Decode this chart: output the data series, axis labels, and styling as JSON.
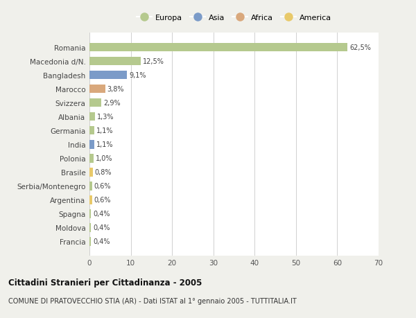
{
  "countries": [
    "Romania",
    "Macedonia d/N.",
    "Bangladesh",
    "Marocco",
    "Svizzera",
    "Albania",
    "Germania",
    "India",
    "Polonia",
    "Brasile",
    "Serbia/Montenegro",
    "Argentina",
    "Spagna",
    "Moldova",
    "Francia"
  ],
  "values": [
    62.5,
    12.5,
    9.1,
    3.8,
    2.9,
    1.3,
    1.1,
    1.1,
    1.0,
    0.8,
    0.6,
    0.6,
    0.4,
    0.4,
    0.4
  ],
  "labels": [
    "62,5%",
    "12,5%",
    "9,1%",
    "3,8%",
    "2,9%",
    "1,3%",
    "1,1%",
    "1,1%",
    "1,0%",
    "0,8%",
    "0,6%",
    "0,6%",
    "0,4%",
    "0,4%",
    "0,4%"
  ],
  "colors": [
    "#b5c98e",
    "#b5c98e",
    "#7b9bc8",
    "#d9a87c",
    "#b5c98e",
    "#b5c98e",
    "#b5c98e",
    "#7b9bc8",
    "#b5c98e",
    "#e8c96a",
    "#b5c98e",
    "#e8c96a",
    "#b5c98e",
    "#b5c98e",
    "#b5c98e"
  ],
  "legend_labels": [
    "Europa",
    "Asia",
    "Africa",
    "America"
  ],
  "legend_colors": [
    "#b5c98e",
    "#7b9bc8",
    "#d9a87c",
    "#e8c96a"
  ],
  "title": "Cittadini Stranieri per Cittadinanza - 2005",
  "subtitle": "COMUNE DI PRATOVECCHIO STIA (AR) - Dati ISTAT al 1° gennaio 2005 - TUTTITALIA.IT",
  "xlim": [
    0,
    70
  ],
  "xticks": [
    0,
    10,
    20,
    30,
    40,
    50,
    60,
    70
  ],
  "background_color": "#f0f0eb",
  "plot_bg_color": "#ffffff",
  "grid_color": "#d0d0d0"
}
